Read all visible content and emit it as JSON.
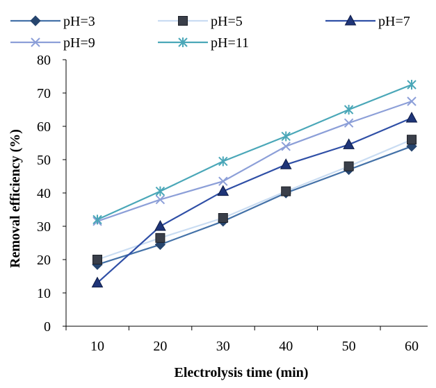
{
  "chart_data": {
    "type": "line",
    "title": "",
    "xlabel": "Electrolysis time (min)",
    "ylabel": "Removal efficiency (%)",
    "x": [
      10,
      20,
      30,
      40,
      50,
      60
    ],
    "ylim": [
      0,
      80
    ],
    "y_ticks": [
      "0",
      "10",
      "20",
      "30",
      "40",
      "50",
      "60",
      "70",
      "80"
    ],
    "x_ticks": [
      "10",
      "20",
      "30",
      "40",
      "50",
      "60"
    ],
    "grid": false,
    "legend_position": "top",
    "series": [
      {
        "name": "pH=3",
        "marker": "diamond",
        "color": "#4472a8",
        "marker_color": "#26456e",
        "values": [
          18.5,
          24.5,
          31.5,
          40.0,
          47.0,
          54.0
        ]
      },
      {
        "name": "pH=5",
        "marker": "square",
        "color": "#c9dcf2",
        "marker_color": "#3a3f4a",
        "values": [
          20.0,
          26.5,
          32.5,
          40.5,
          48.0,
          56.0
        ]
      },
      {
        "name": "pH=7",
        "marker": "triangle",
        "color": "#2f4fa6",
        "marker_color": "#1f3578",
        "values": [
          13.0,
          30.0,
          40.5,
          48.5,
          54.5,
          62.5
        ]
      },
      {
        "name": "pH=9",
        "marker": "x",
        "color": "#8c9fd8",
        "marker_color": "#8c9fd8",
        "values": [
          31.5,
          38.0,
          43.5,
          54.0,
          61.0,
          67.5
        ]
      },
      {
        "name": "pH=11",
        "marker": "star",
        "color": "#4aa7b8",
        "marker_color": "#4aa7b8",
        "values": [
          32.0,
          40.5,
          49.5,
          57.0,
          65.0,
          72.5
        ]
      }
    ]
  }
}
